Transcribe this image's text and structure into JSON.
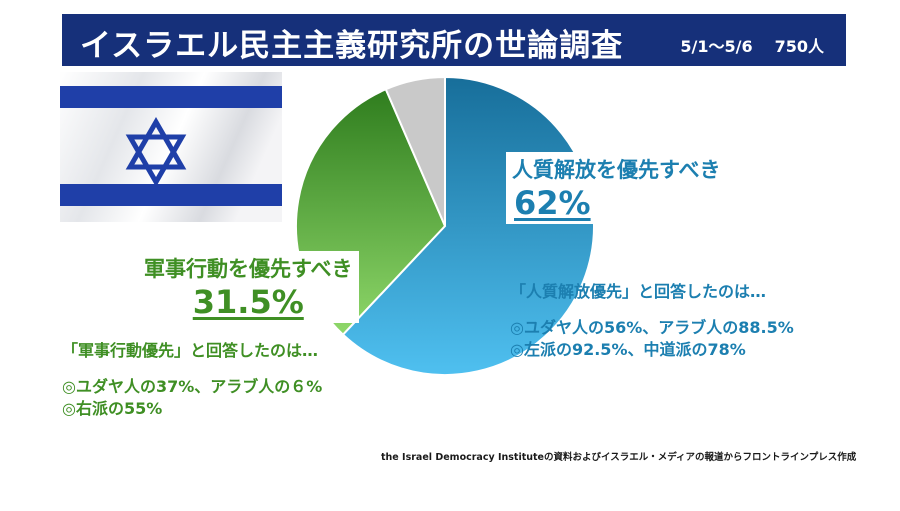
{
  "header": {
    "title": "イスラエル民主主義研究所の世論調査",
    "period": "5/1〜5/6",
    "sample": "750人"
  },
  "flag_icon": "israel-flag-icon",
  "colors": {
    "header_bg": "#16307a",
    "hostages": "#1c7fb0",
    "military": "#3f8f24",
    "other": "#c9c9c9"
  },
  "chart_data": {
    "type": "pie",
    "slices": [
      {
        "label": "人質解放を優先すべき",
        "value": 62,
        "display": "62%"
      },
      {
        "label": "軍事行動を優先すべき",
        "value": 31.5,
        "display": "31.5%"
      },
      {
        "label": "",
        "value": 6.5,
        "display": ""
      }
    ]
  },
  "notes": {
    "hostages": {
      "heading": "「人質解放優先」と回答したのは…",
      "lines": [
        "◎ユダヤ人の56%、アラブ人の88.5%",
        "◎左派の92.5%、中道派の78%"
      ]
    },
    "military": {
      "heading": "「軍事行動優先」と回答したのは…",
      "lines": [
        "◎ユダヤ人の37%、アラブ人の６%",
        "◎右派の55%"
      ]
    }
  },
  "source": "the Israel Democracy Instituteの資料およびイスラエル・メディアの報道からフロントラインプレス作成"
}
